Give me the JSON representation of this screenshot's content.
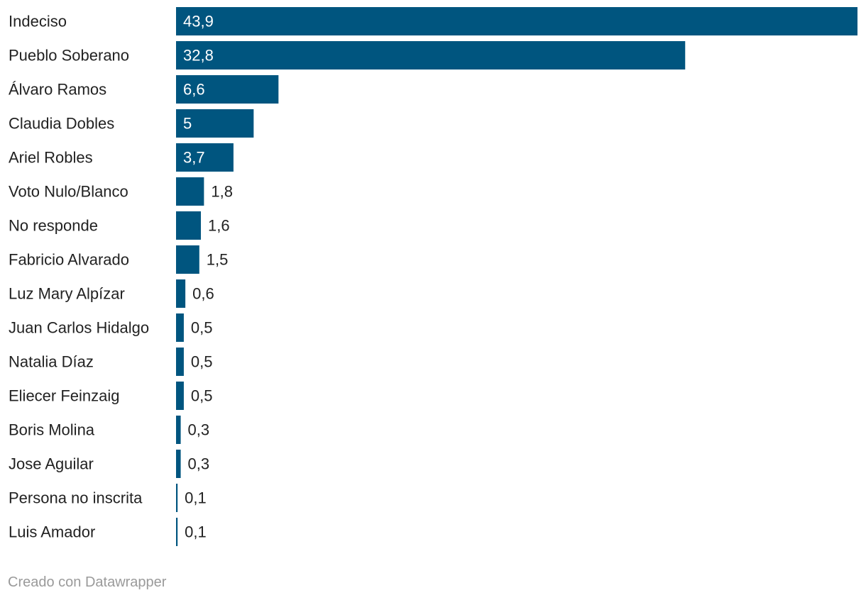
{
  "chart_data": {
    "type": "bar",
    "orientation": "horizontal",
    "categories": [
      "Indeciso",
      "Pueblo Soberano",
      "Álvaro Ramos",
      "Claudia Dobles",
      "Ariel Robles",
      "Voto Nulo/Blanco",
      "No responde",
      "Fabricio Alvarado",
      "Luz Mary Alpízar",
      "Juan Carlos Hidalgo",
      "Natalia Díaz",
      "Eliecer Feinzaig",
      "Boris Molina",
      "Jose Aguilar",
      "Persona no inscrita",
      "Luis Amador"
    ],
    "values": [
      43.9,
      32.8,
      6.6,
      5,
      3.7,
      1.8,
      1.6,
      1.5,
      0.6,
      0.5,
      0.5,
      0.5,
      0.3,
      0.3,
      0.1,
      0.1
    ],
    "value_labels": [
      "43,9",
      "32,8",
      "6,6",
      "5",
      "3,7",
      "1,8",
      "1,6",
      "1,5",
      "0,6",
      "0,5",
      "0,5",
      "0,5",
      "0,3",
      "0,3",
      "0,1",
      "0,1"
    ],
    "xlim": [
      0,
      43.9
    ],
    "grid": false,
    "colors": {
      "bar": "#00557f",
      "value_inside": "#ffffff",
      "value_outside": "#222222"
    }
  },
  "footer": {
    "credit": "Creado con Datawrapper"
  }
}
